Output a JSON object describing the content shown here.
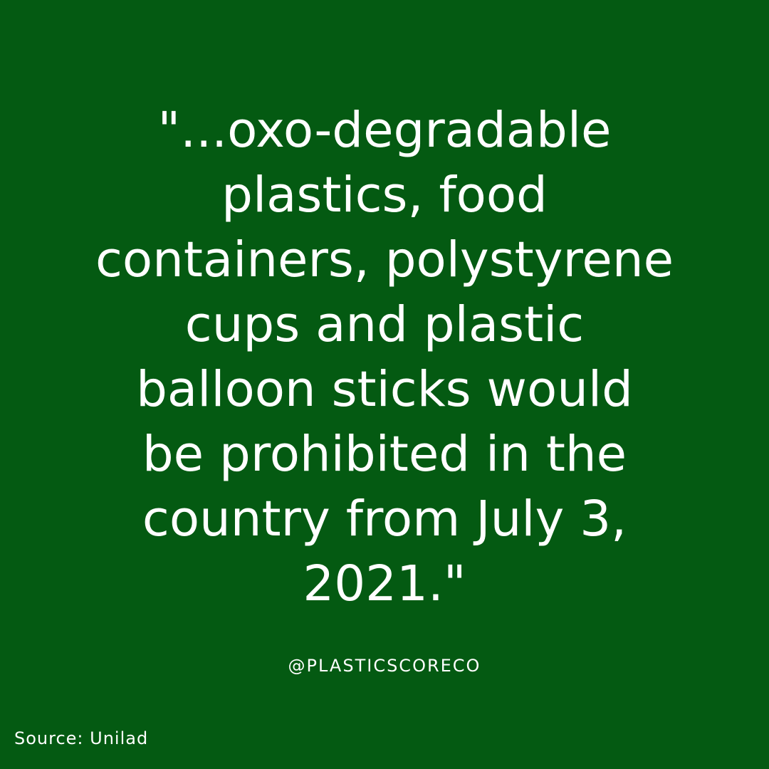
{
  "quote": {
    "lines": [
      "\"...oxo-degradable",
      "plastics, food",
      "containers, polystyrene",
      "cups and plastic",
      "balloon sticks would",
      "be prohibited in the",
      "country from July 3,",
      "2021.\""
    ]
  },
  "handle": "@PLASTICSCORECO",
  "source": "Source: Unilad",
  "colors": {
    "background": "#045a12",
    "text": "#ffffff"
  }
}
